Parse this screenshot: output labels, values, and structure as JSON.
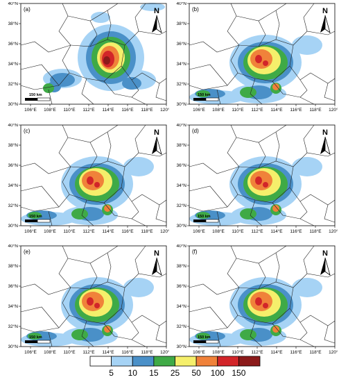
{
  "panels": [
    {
      "label": "(a)"
    },
    {
      "label": "(b)"
    },
    {
      "label": "(c)"
    },
    {
      "label": "(d)"
    },
    {
      "label": "(e)"
    },
    {
      "label": "(f)"
    }
  ],
  "lat_ticks": [
    "30°N",
    "32°N",
    "34°N",
    "36°N",
    "38°N",
    "40°N"
  ],
  "lon_ticks": [
    "106°E",
    "108°E",
    "110°E",
    "112°E",
    "114°E",
    "116°E",
    "118°E",
    "120°E"
  ],
  "north_label": "N",
  "scalebar_label": "150 km",
  "legend": {
    "labels": [
      "5",
      "10",
      "15",
      "25",
      "50",
      "100",
      "150"
    ],
    "colors": [
      "#ffffff",
      "#a6d3f5",
      "#4a90c8",
      "#3faa46",
      "#f5ef6b",
      "#f0823a",
      "#d22529",
      "#8b1a1a"
    ]
  }
}
